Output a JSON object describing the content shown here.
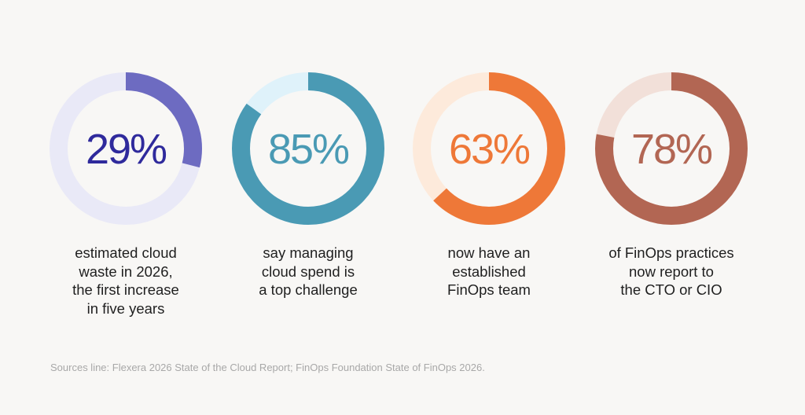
{
  "chart_data": {
    "type": "donut",
    "items": [
      {
        "value": 29,
        "label": "29%",
        "caption": [
          "estimated cloud",
          "waste in 2026,",
          "the first increase",
          "in five years"
        ],
        "color": "#6d6bc1",
        "track": "#e9e9f7",
        "text_color": "#2f2a9c"
      },
      {
        "value": 85,
        "label": "85%",
        "caption": [
          "say managing",
          "cloud spend is",
          "a top challenge"
        ],
        "color": "#4a9ab4",
        "track": "#dff2fa",
        "text_color": "#4a9ab4"
      },
      {
        "value": 63,
        "label": "63%",
        "caption": [
          "now have an",
          "established",
          "FinOps team"
        ],
        "color": "#ee7838",
        "track": "#fdeadb",
        "text_color": "#ee7838"
      },
      {
        "value": 78,
        "label": "78%",
        "caption": [
          "of FinOps practices",
          "now report to",
          "the CTO or CIO"
        ],
        "color": "#b26653",
        "track": "#f2e0d9",
        "text_color": "#b26653"
      }
    ]
  },
  "source": "Sources line: Flexera 2026 State of the Cloud Report; FinOps Foundation State of FinOps 2026."
}
